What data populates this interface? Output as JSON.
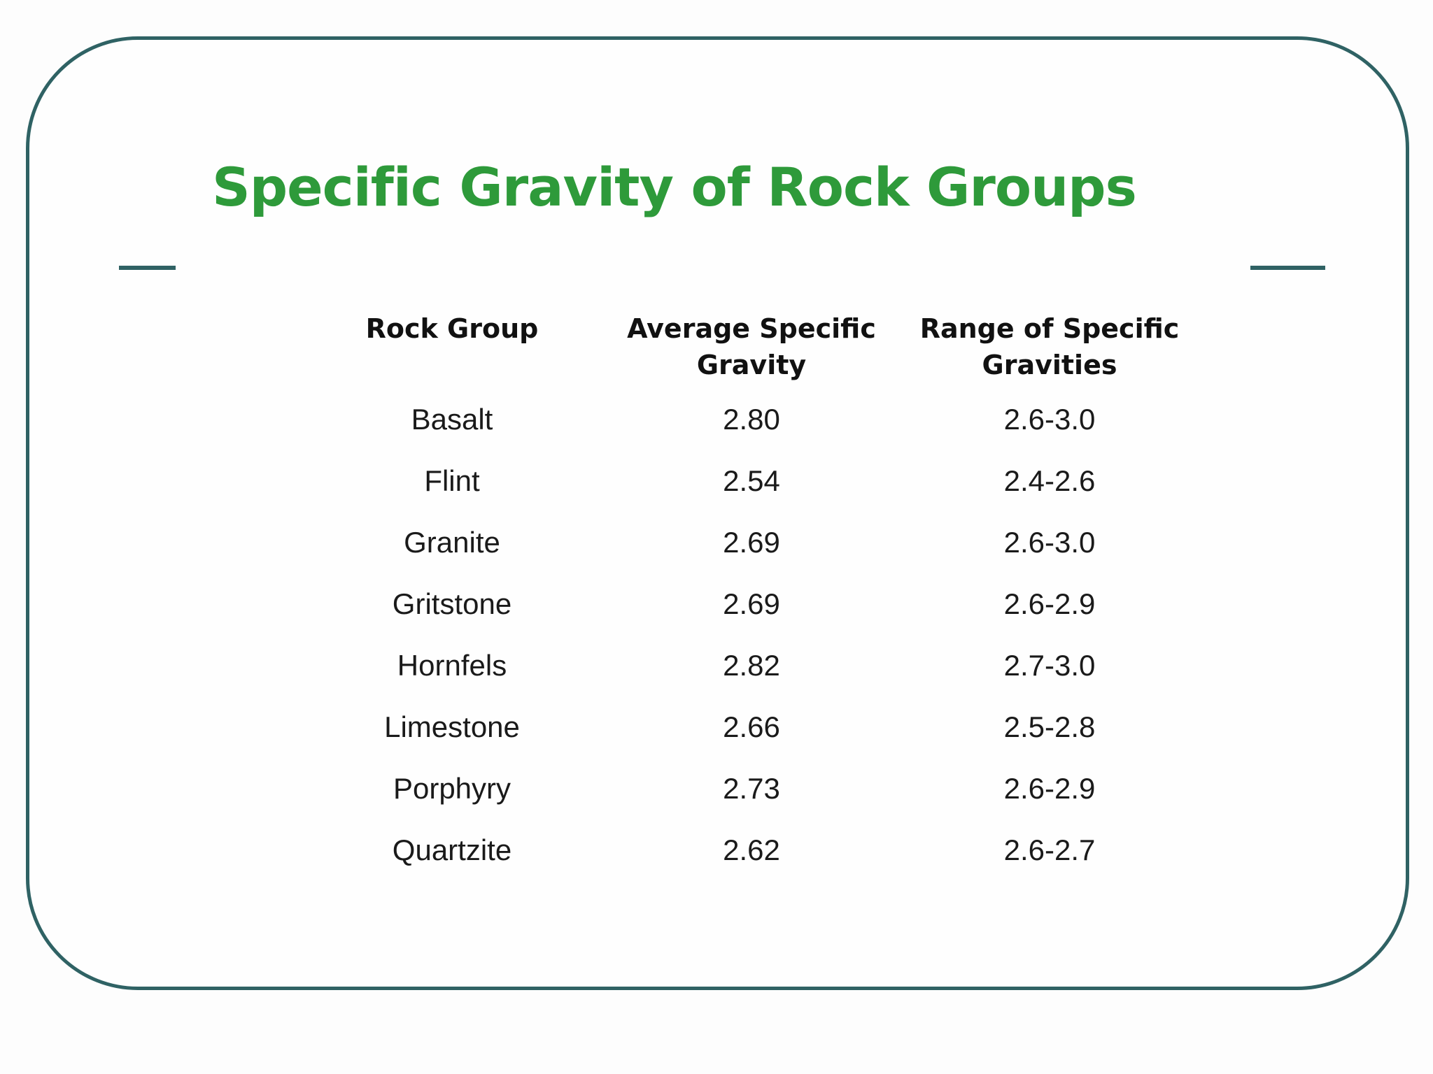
{
  "title": "Specific Gravity of Rock Groups",
  "table": {
    "header": [
      "Rock Group",
      "Average Specific Gravity",
      "Range of Specific Gravities"
    ],
    "rows": [
      [
        "Basalt",
        "2.80",
        "2.6-3.0"
      ],
      [
        "Flint",
        "2.54",
        "2.4-2.6"
      ],
      [
        "Granite",
        "2.69",
        "2.6-3.0"
      ],
      [
        "Gritstone",
        "2.69",
        "2.6-2.9"
      ],
      [
        "Hornfels",
        "2.82",
        "2.7-3.0"
      ],
      [
        "Limestone",
        "2.66",
        "2.5-2.8"
      ],
      [
        "Porphyry",
        "2.73",
        "2.6-2.9"
      ],
      [
        "Quartzite",
        "2.62",
        "2.6-2.7"
      ]
    ]
  }
}
